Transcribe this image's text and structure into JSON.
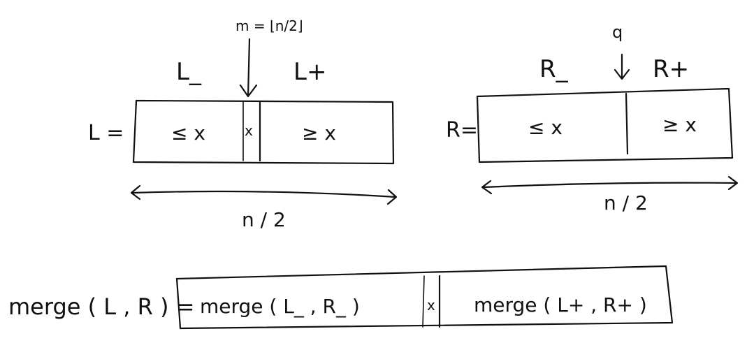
{
  "left_array": {
    "split_label": "m = ⌊n/2⌋",
    "minus_label": "L_",
    "plus_label": "L+",
    "name_label": "L =",
    "cells": [
      "≤ x",
      "x",
      "≥ x"
    ],
    "length_label": "n / 2"
  },
  "right_array": {
    "pivot_label": "q",
    "minus_label": "R_",
    "plus_label": "R+",
    "name_label": "R=",
    "cells": [
      "≤ x",
      "≥ x"
    ],
    "length_label": "n / 2"
  },
  "merge_row": {
    "lhs_label": "merge ( L , R ) =",
    "cells": [
      "merge ( L_ , R_ )",
      "x",
      "merge ( L+ , R+ )"
    ]
  }
}
